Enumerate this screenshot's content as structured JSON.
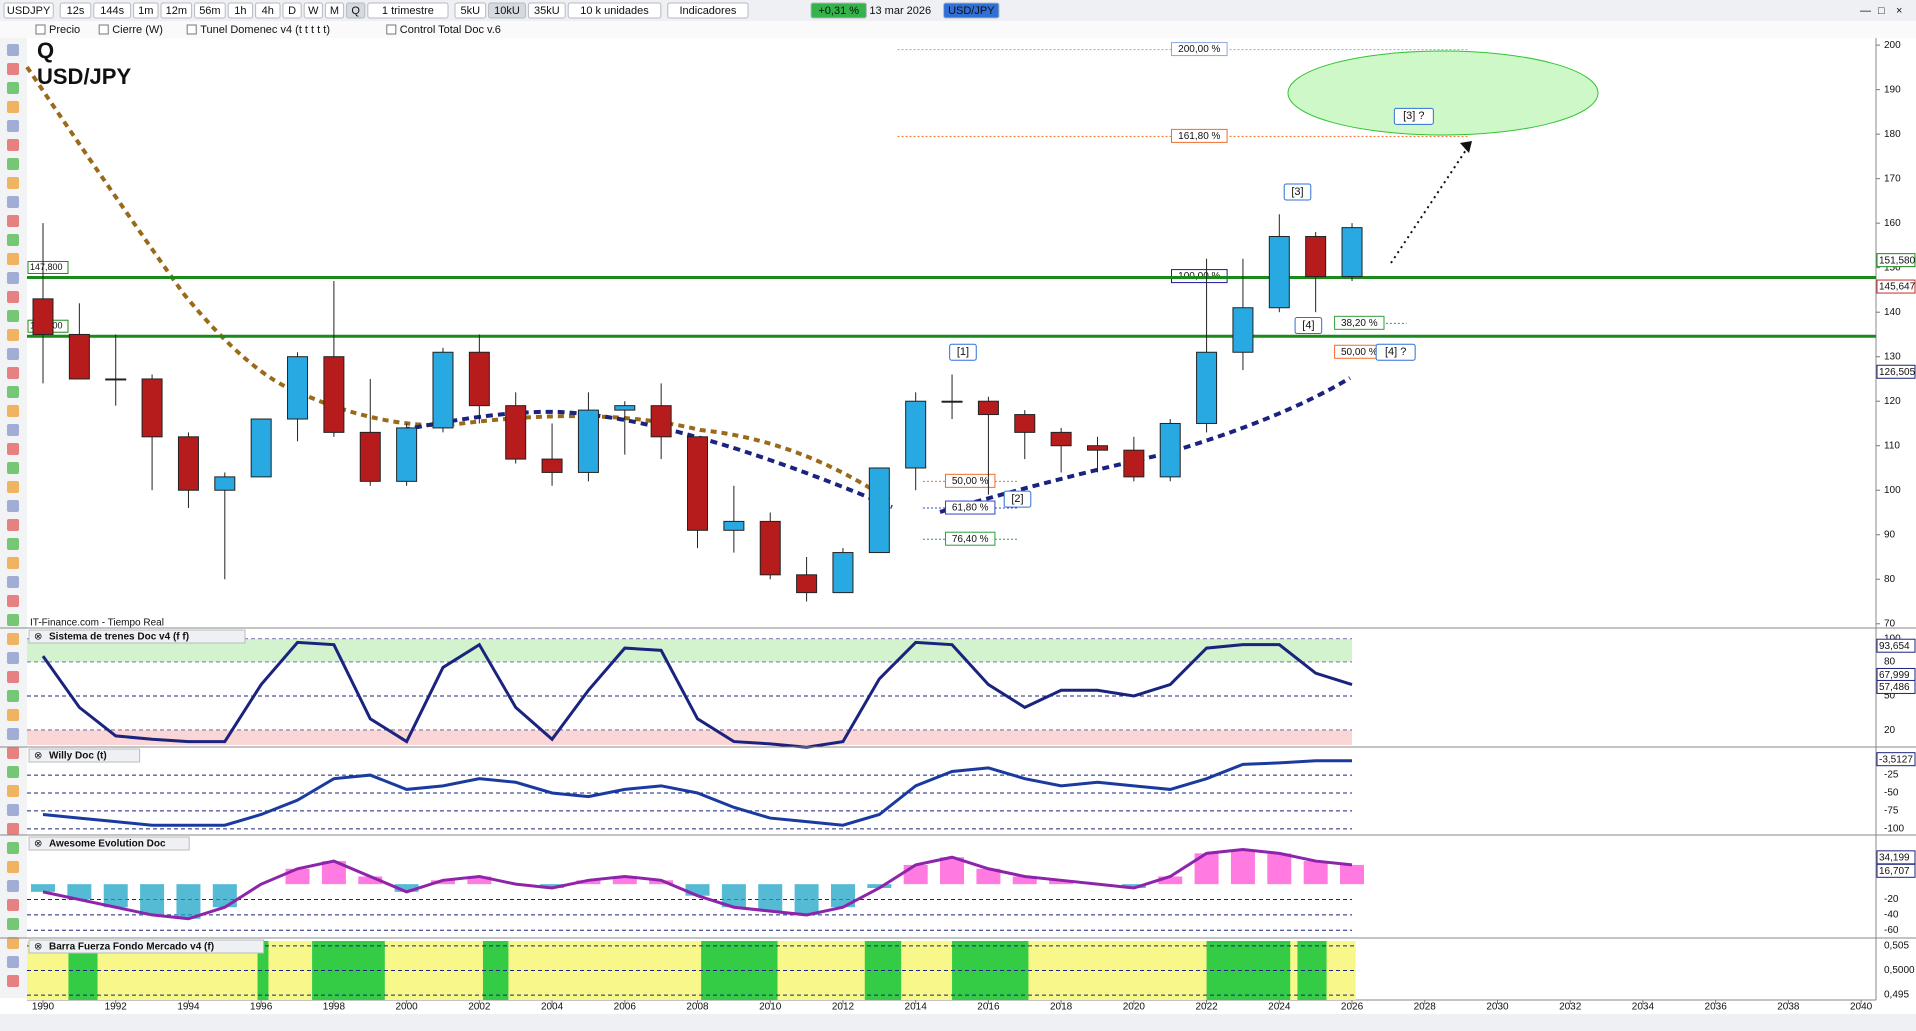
{
  "toolbar": {
    "symbol": "USDJPY",
    "intervals": [
      "12s",
      "144s",
      "1m",
      "12m",
      "56m",
      "1h",
      "4h",
      "D",
      "W",
      "M",
      "Q"
    ],
    "period": "1 trimestre",
    "units": [
      "5kU",
      "10kU",
      "35kU"
    ],
    "units_select": "10 k unidades",
    "indicators": "Indicadores",
    "change": "+0,31 %",
    "date": "13 mar 2026",
    "pair_tag": "USD/JPY"
  },
  "legend_row": [
    "Precio",
    "Cierre (W)",
    "Tunel Domenec v4 (t t t t t)",
    "Control Total Doc v.6"
  ],
  "chart_data": [
    {
      "type": "candlestick",
      "title": "Q",
      "subtitle": "USD/JPY",
      "source": "IT-Finance.com - Tiempo Real",
      "x": [
        1990,
        1991,
        1992,
        1993,
        1994,
        1995,
        1996,
        1997,
        1998,
        1999,
        2000,
        2001,
        2002,
        2003,
        2004,
        2005,
        2006,
        2007,
        2008,
        2009,
        2010,
        2011,
        2012,
        2013,
        2014,
        2015,
        2016,
        2017,
        2018,
        2019,
        2020,
        2021,
        2022,
        2023,
        2024,
        2025,
        2026
      ],
      "open": [
        143,
        135,
        125,
        125,
        112,
        100,
        103,
        116,
        130,
        113,
        102,
        114,
        131,
        119,
        107,
        104,
        118,
        119,
        112,
        91,
        93,
        81,
        77,
        86,
        105,
        120,
        120,
        117,
        113,
        110,
        109,
        103,
        115,
        131,
        141,
        157,
        148
      ],
      "high": [
        160,
        142,
        135,
        126,
        113,
        104,
        116,
        131,
        147,
        125,
        115,
        132,
        135,
        122,
        115,
        122,
        120,
        124,
        112,
        101,
        95,
        85,
        87,
        105,
        122,
        126,
        121,
        118,
        114,
        112,
        112,
        116,
        152,
        152,
        162,
        158,
        160
      ],
      "low": [
        124,
        125,
        119,
        100,
        96,
        80,
        103,
        111,
        112,
        101,
        101,
        113,
        115,
        106,
        101,
        102,
        108,
        107,
        87,
        86,
        80,
        75,
        77,
        86,
        100,
        116,
        99,
        107,
        104,
        104,
        102,
        102,
        113,
        127,
        140,
        140,
        147
      ],
      "close": [
        135,
        125,
        125,
        112,
        100,
        103,
        116,
        130,
        113,
        102,
        114,
        131,
        119,
        107,
        104,
        118,
        119,
        112,
        91,
        93,
        81,
        77,
        86,
        105,
        120,
        120,
        117,
        113,
        110,
        109,
        103,
        115,
        131,
        141,
        157,
        148,
        159
      ],
      "up_color": "#29a9e1",
      "down_color": "#b71c1c",
      "xlim": [
        1989.56,
        2040.41
      ],
      "ylim": [
        69.5,
        201.6
      ],
      "xticks": [
        1990,
        1992,
        1994,
        1996,
        1998,
        2000,
        2002,
        2004,
        2006,
        2008,
        2010,
        2012,
        2014,
        2016,
        2018,
        2020,
        2022,
        2024,
        2026,
        2028,
        2030,
        2032,
        2034,
        2036,
        2038,
        2040
      ],
      "yticks": [
        70,
        80,
        90,
        100,
        110,
        120,
        130,
        140,
        150,
        160,
        170,
        180,
        190,
        200
      ],
      "levels": [
        {
          "value": 147.8,
          "label": "147,800"
        },
        {
          "value": 134.6,
          "label": "134,600"
        }
      ],
      "level_color": "#1a8a1a",
      "price_tags": [
        {
          "value": 151.58,
          "label": "151,580",
          "color": "#1a8a1a"
        },
        {
          "value": 145.647,
          "label": "145,647",
          "color": "#c62828"
        },
        {
          "value": 126.505,
          "label": "126,505",
          "color": "#1a237e"
        }
      ],
      "annotations": [
        {
          "value": 199,
          "label": "200,00 %",
          "color": "#8fa7d8"
        },
        {
          "value": 179.5,
          "label": "161,80 %",
          "color": "#f26b2a"
        },
        {
          "value": 148,
          "label": "100,00 %",
          "color": "#1a1aa0"
        },
        {
          "value": 137.5,
          "label": "38,20 %",
          "color": "#2e9e3a"
        },
        {
          "value": 131,
          "label": "50,00 %",
          "color": "#f26b2a"
        },
        {
          "value": 102,
          "label": "50,00 %",
          "color": "#f26b2a"
        },
        {
          "value": 96,
          "label": "61,80 %",
          "color": "#3344bb"
        },
        {
          "value": 89,
          "label": "76,40 %",
          "color": "#2e9e3a"
        }
      ],
      "waves": [
        "[1]",
        "[2]",
        "[3]",
        "[4]",
        "[3] ?",
        "[4] ?"
      ]
    },
    {
      "type": "oscillator",
      "title": "Sistema de trenes Doc v4 (f f)",
      "color": "#1a237e",
      "x": [
        1990,
        1991,
        1992,
        1993,
        1994,
        1995,
        1996,
        1997,
        1998,
        1999,
        2000,
        2001,
        2002,
        2003,
        2004,
        2005,
        2006,
        2007,
        2008,
        2009,
        2010,
        2011,
        2012,
        2013,
        2014,
        2015,
        2016,
        2017,
        2018,
        2019,
        2020,
        2021,
        2022,
        2023,
        2024,
        2025,
        2026
      ],
      "values": [
        85,
        40,
        15,
        12,
        10,
        10,
        60,
        97,
        95,
        30,
        10,
        75,
        95,
        40,
        12,
        55,
        92,
        90,
        30,
        10,
        8,
        5,
        10,
        65,
        97,
        95,
        60,
        40,
        55,
        55,
        50,
        60,
        92,
        95,
        95,
        70,
        60
      ],
      "ylim": [
        7,
        107
      ],
      "yticks": [
        100,
        80,
        50,
        20
      ],
      "price_tags": [
        {
          "value": 93.654,
          "label": "93,654"
        },
        {
          "value": 67.999,
          "label": "67,999"
        },
        {
          "value": 57.486,
          "label": "57,486"
        }
      ]
    },
    {
      "type": "oscillator",
      "title": "Willy Doc (t)",
      "color": "#1a3aa0",
      "x": [
        1990,
        1991,
        1992,
        1993,
        1994,
        1995,
        1996,
        1997,
        1998,
        1999,
        2000,
        2001,
        2002,
        2003,
        2004,
        2005,
        2006,
        2007,
        2008,
        2009,
        2010,
        2011,
        2012,
        2013,
        2014,
        2015,
        2016,
        2017,
        2018,
        2019,
        2020,
        2021,
        2022,
        2023,
        2024,
        2025,
        2026
      ],
      "values": [
        -80,
        -85,
        -90,
        -95,
        -95,
        -95,
        -80,
        -60,
        -30,
        -25,
        -45,
        -40,
        -30,
        -35,
        -50,
        -55,
        -45,
        -40,
        -50,
        -70,
        -85,
        -90,
        -95,
        -80,
        -40,
        -20,
        -15,
        -30,
        -40,
        -35,
        -40,
        -45,
        -30,
        -10,
        -8,
        -5,
        -5
      ],
      "ylim": [
        -110,
        10
      ],
      "yticks": [
        -25,
        -50,
        -75,
        -100
      ],
      "price_tags": [
        {
          "value": -3.5127,
          "label": "-3,5127"
        }
      ]
    },
    {
      "type": "histogram-oscillator",
      "title": "Awesome Evolution Doc",
      "color": "#8e24aa",
      "x": [
        1990,
        1991,
        1992,
        1993,
        1994,
        1995,
        1996,
        1997,
        1998,
        1999,
        2000,
        2001,
        2002,
        2003,
        2004,
        2005,
        2006,
        2007,
        2008,
        2009,
        2010,
        2011,
        2012,
        2013,
        2014,
        2015,
        2016,
        2017,
        2018,
        2019,
        2020,
        2021,
        2022,
        2023,
        2024,
        2025,
        2026
      ],
      "values": [
        -10,
        -20,
        -30,
        -40,
        -45,
        -30,
        0,
        20,
        30,
        10,
        -10,
        5,
        10,
        0,
        -5,
        5,
        10,
        5,
        -15,
        -30,
        -35,
        -40,
        -30,
        -5,
        25,
        35,
        20,
        10,
        5,
        0,
        -5,
        10,
        40,
        45,
        40,
        30,
        25
      ],
      "ylim": [
        -70,
        60
      ],
      "yticks": [
        -20,
        -40,
        -60
      ],
      "price_tags": [
        {
          "value": 34.199,
          "label": "34,199"
        },
        {
          "value": 16.707,
          "label": "16,707"
        }
      ]
    },
    {
      "type": "periods",
      "title": "Barra Fuerza Fondo Mercado v4 (f)",
      "colors": [
        "#f7f78a",
        "#33cc44"
      ],
      "green_periods": [
        [
          1990.7,
          1991.5
        ],
        [
          1995.9,
          1996.2
        ],
        [
          1997.4,
          1999.4
        ],
        [
          2002.1,
          2002.8
        ],
        [
          2008.1,
          2010.2
        ],
        [
          2012.6,
          2013.6
        ],
        [
          2015.0,
          2017.1
        ],
        [
          2022.0,
          2024.3
        ],
        [
          2024.5,
          2025.3
        ]
      ],
      "period_end": 2026.1,
      "ylim": [
        0.494,
        0.506
      ],
      "yticks": [
        {
          "value": 0.505,
          "label": "0,505"
        },
        {
          "value": 0.5,
          "label": "0,5000"
        },
        {
          "value": 0.495,
          "label": "0,495"
        }
      ]
    }
  ]
}
